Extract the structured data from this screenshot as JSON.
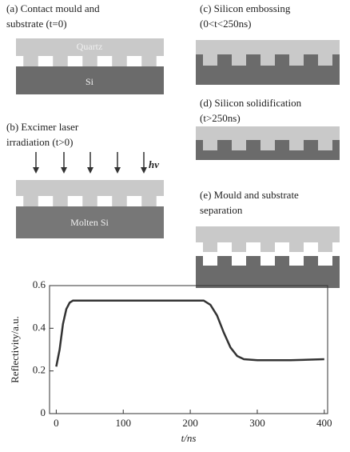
{
  "panels": [
    {
      "label_lines": [
        "(a) Contact mould and",
        "substrate (t=0)"
      ],
      "layer_labels": [
        "Quartz",
        "Si"
      ]
    },
    {
      "label_lines": [
        "(b) Excimer laser",
        "irradiation (t>0)"
      ],
      "layer_labels": [
        "Molten Si"
      ],
      "beam_label": "hν"
    },
    {
      "label_lines": [
        "(c) Silicon embossing",
        "(0<t<250ns)"
      ]
    },
    {
      "label_lines": [
        "(d) Silicon solidification",
        "(t>250ns)"
      ]
    },
    {
      "label_lines": [
        "(e) Mould and substrate",
        "separation"
      ]
    }
  ],
  "chart_data": {
    "type": "line",
    "x_label": "t/ns",
    "y_label": "Reflectivity/a.u.",
    "x": [
      0,
      5,
      10,
      15,
      20,
      25,
      40,
      100,
      200,
      220,
      230,
      240,
      250,
      260,
      270,
      280,
      300,
      350,
      400
    ],
    "values": [
      0.22,
      0.3,
      0.42,
      0.49,
      0.52,
      0.53,
      0.53,
      0.53,
      0.53,
      0.53,
      0.51,
      0.46,
      0.38,
      0.31,
      0.27,
      0.255,
      0.25,
      0.25,
      0.255
    ],
    "color": "#333333",
    "xlim": [
      -10,
      405
    ],
    "xticks": [
      0,
      100,
      200,
      300,
      400
    ],
    "ylim": [
      0,
      0.6
    ],
    "yticks": [
      0,
      0.2,
      0.4,
      0.6
    ]
  }
}
